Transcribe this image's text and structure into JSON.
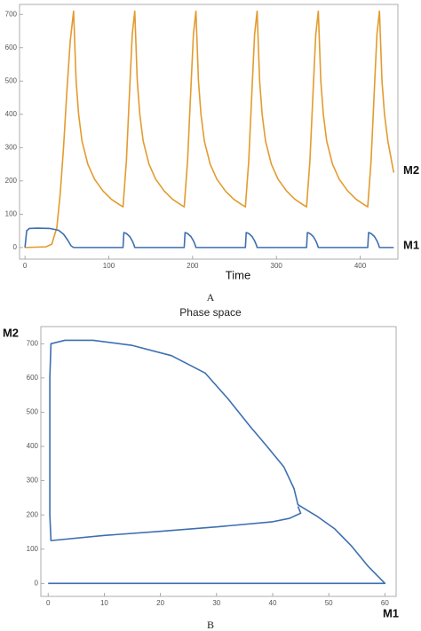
{
  "chart_data": [
    {
      "type": "line",
      "caption": "A",
      "xlabel": "Time",
      "xlim": [
        -6.5,
        445
      ],
      "ylim": [
        -35,
        730
      ],
      "xticks": [
        0,
        100,
        200,
        300,
        400
      ],
      "yticks": [
        0,
        100,
        200,
        300,
        400,
        500,
        600,
        700
      ],
      "series": [
        {
          "name": "M2",
          "color": "#e39b2f",
          "x": [
            0,
            25,
            32,
            38,
            42,
            46,
            50,
            54,
            58,
            61,
            64,
            68,
            75,
            83,
            93,
            103,
            113,
            117,
            121,
            125,
            128,
            131,
            134,
            137,
            141,
            148,
            156,
            166,
            176,
            186,
            190,
            194,
            198,
            201,
            204,
            207,
            210,
            214,
            221,
            229,
            239,
            249,
            259,
            263,
            267,
            271,
            274,
            277,
            280,
            283,
            287,
            294,
            302,
            312,
            322,
            332,
            336,
            340,
            344,
            347,
            350,
            353,
            356,
            360,
            367,
            375,
            385,
            395,
            405,
            409,
            413,
            417,
            420,
            423,
            426,
            429,
            433,
            440
          ],
          "values": [
            0,
            2,
            10,
            60,
            160,
            300,
            470,
            620,
            710,
            500,
            400,
            320,
            250,
            205,
            170,
            145,
            128,
            122,
            260,
            480,
            640,
            710,
            500,
            400,
            320,
            250,
            205,
            170,
            145,
            128,
            122,
            260,
            480,
            640,
            710,
            500,
            400,
            320,
            250,
            205,
            170,
            145,
            128,
            122,
            260,
            480,
            640,
            710,
            500,
            400,
            320,
            250,
            205,
            170,
            145,
            128,
            122,
            260,
            480,
            640,
            710,
            500,
            400,
            320,
            250,
            205,
            170,
            145,
            128,
            122,
            260,
            480,
            640,
            710,
            500,
            400,
            320,
            225
          ]
        },
        {
          "name": "M1",
          "color": "#3d6fb0",
          "x": [
            0,
            2,
            5,
            15,
            30,
            40,
            46,
            51,
            55,
            58,
            117,
            118,
            121,
            125,
            128,
            130,
            131,
            190,
            191,
            194,
            198,
            201,
            203,
            204,
            263,
            264,
            267,
            271,
            274,
            276,
            277,
            336,
            337,
            340,
            344,
            347,
            349,
            350,
            409,
            410,
            413,
            417,
            420,
            422,
            423,
            440
          ],
          "values": [
            0,
            50,
            57,
            58,
            57,
            52,
            40,
            22,
            5,
            0,
            0,
            45,
            42,
            33,
            20,
            8,
            0,
            0,
            45,
            42,
            33,
            20,
            8,
            0,
            0,
            45,
            42,
            33,
            20,
            8,
            0,
            0,
            45,
            42,
            33,
            20,
            8,
            0,
            0,
            45,
            42,
            33,
            20,
            8,
            0,
            0
          ]
        }
      ]
    },
    {
      "type": "line",
      "title": "Phase space",
      "caption": "B",
      "xlabel": "M1",
      "ylabel": "M2",
      "xlim": [
        -1.3,
        62
      ],
      "ylim": [
        -38,
        750
      ],
      "xticks": [
        0,
        10,
        20,
        30,
        40,
        50,
        60
      ],
      "yticks": [
        0,
        100,
        200,
        300,
        400,
        500,
        600,
        700
      ],
      "series": [
        {
          "color": "#3d6fb0",
          "x": [
            0,
            60,
            57,
            54,
            51,
            48,
            46,
            45,
            44.5,
            43.8,
            42,
            39,
            36,
            32,
            28,
            22,
            15,
            8,
            3,
            0.5,
            0.3,
            0.3,
            0.3,
            0.5,
            10,
            20,
            30,
            40,
            43,
            45,
            44.5
          ],
          "values": [
            0,
            0,
            50,
            110,
            160,
            195,
            215,
            225,
            230,
            277,
            340,
            400,
            458,
            540,
            614,
            665,
            695,
            710,
            710,
            700,
            600,
            400,
            200,
            125,
            140,
            152,
            165,
            180,
            190,
            205,
            225
          ]
        }
      ]
    }
  ]
}
